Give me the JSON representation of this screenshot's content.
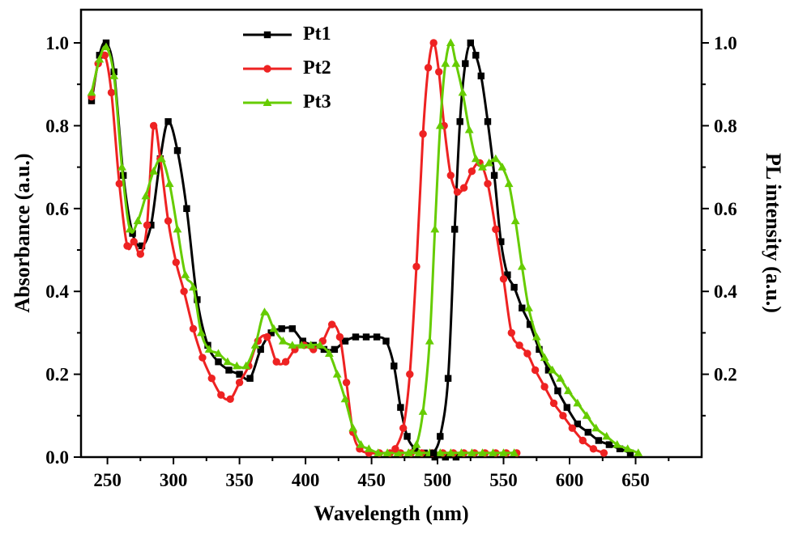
{
  "figure": {
    "background": "#ffffff",
    "border_color": "#000000"
  },
  "chart_data": {
    "type": "line",
    "title": "",
    "xlabel": "Wavelength (nm)",
    "ylabel_left": "Absorbance (a.u.)",
    "ylabel_right": "PL intensity (a.u.)",
    "xlim": [
      230,
      700
    ],
    "ylim": [
      0,
      1.08
    ],
    "x_ticks": [
      250,
      300,
      350,
      400,
      450,
      500,
      550,
      600,
      650
    ],
    "x_minor_step": 25,
    "y_ticks_left": [
      0.0,
      0.2,
      0.4,
      0.6,
      0.8,
      1.0
    ],
    "y_ticks_right": [
      0.2,
      0.4,
      0.6,
      0.8,
      1.0
    ],
    "y_minor_step": 0.1,
    "grid": false,
    "legend": {
      "position": "top-center",
      "entries": [
        {
          "label": "Pt1",
          "color": "#000000",
          "marker": "square"
        },
        {
          "label": "Pt2",
          "color": "#ee2222",
          "marker": "circle"
        },
        {
          "label": "Pt3",
          "color": "#66cc00",
          "marker": "triangle"
        }
      ]
    },
    "series": [
      {
        "name": "Pt1 absorption",
        "label": "Pt1",
        "axis": "left",
        "color": "#000000",
        "marker": "square",
        "x": [
          238,
          244,
          249,
          255,
          262,
          269,
          276,
          283,
          290,
          296,
          303,
          310,
          318,
          326,
          334,
          342,
          350,
          358,
          366,
          374,
          382,
          390,
          398,
          406,
          414,
          422,
          430,
          438,
          446,
          454,
          461,
          467,
          472,
          477,
          483,
          490,
          498,
          506,
          514
        ],
        "y": [
          0.86,
          0.97,
          1.0,
          0.93,
          0.68,
          0.54,
          0.51,
          0.56,
          0.72,
          0.81,
          0.74,
          0.6,
          0.38,
          0.27,
          0.23,
          0.21,
          0.2,
          0.19,
          0.26,
          0.3,
          0.31,
          0.31,
          0.28,
          0.27,
          0.26,
          0.26,
          0.28,
          0.29,
          0.29,
          0.29,
          0.28,
          0.22,
          0.12,
          0.05,
          0.02,
          0.01,
          0.0,
          0.0,
          0.0
        ]
      },
      {
        "name": "Pt2 absorption",
        "label": "Pt2",
        "axis": "left",
        "color": "#ee2222",
        "marker": "circle",
        "x": [
          238,
          243,
          248,
          253,
          259,
          265,
          270,
          275,
          280,
          285,
          290,
          296,
          302,
          308,
          315,
          322,
          329,
          336,
          343,
          350,
          357,
          364,
          371,
          378,
          385,
          392,
          399,
          406,
          413,
          420,
          426,
          431,
          436,
          441,
          448,
          456,
          464,
          472,
          480,
          488,
          496,
          504,
          512,
          520,
          528,
          536,
          544,
          552,
          560
        ],
        "y": [
          0.87,
          0.95,
          0.97,
          0.88,
          0.66,
          0.51,
          0.52,
          0.49,
          0.56,
          0.8,
          0.72,
          0.57,
          0.47,
          0.4,
          0.31,
          0.24,
          0.19,
          0.15,
          0.14,
          0.18,
          0.22,
          0.28,
          0.29,
          0.23,
          0.23,
          0.26,
          0.27,
          0.26,
          0.28,
          0.32,
          0.29,
          0.18,
          0.06,
          0.02,
          0.01,
          0.01,
          0.01,
          0.01,
          0.01,
          0.01,
          0.01,
          0.01,
          0.01,
          0.01,
          0.01,
          0.01,
          0.01,
          0.01,
          0.01
        ]
      },
      {
        "name": "Pt3 absorption",
        "label": "Pt3",
        "axis": "left",
        "color": "#66cc00",
        "marker": "triangle",
        "x": [
          238,
          244,
          249,
          255,
          261,
          267,
          273,
          279,
          285,
          291,
          297,
          303,
          309,
          315,
          321,
          327,
          334,
          341,
          348,
          355,
          362,
          369,
          376,
          383,
          390,
          397,
          404,
          411,
          418,
          424,
          430,
          436,
          442,
          448,
          455,
          462,
          470,
          478,
          486,
          494,
          502,
          510,
          518,
          526,
          534,
          542,
          550,
          558
        ],
        "y": [
          0.88,
          0.96,
          0.99,
          0.92,
          0.7,
          0.55,
          0.57,
          0.63,
          0.69,
          0.72,
          0.66,
          0.55,
          0.44,
          0.41,
          0.3,
          0.26,
          0.25,
          0.23,
          0.22,
          0.22,
          0.27,
          0.35,
          0.31,
          0.28,
          0.27,
          0.27,
          0.27,
          0.27,
          0.25,
          0.2,
          0.14,
          0.07,
          0.03,
          0.02,
          0.01,
          0.01,
          0.01,
          0.01,
          0.01,
          0.01,
          0.01,
          0.01,
          0.01,
          0.01,
          0.01,
          0.01,
          0.01,
          0.01
        ]
      },
      {
        "name": "Pt1 PL",
        "label": "Pt1",
        "axis": "right",
        "color": "#000000",
        "marker": "square",
        "x": [
          497,
          502,
          508,
          513,
          517,
          521,
          525,
          529,
          533,
          538,
          543,
          548,
          553,
          558,
          564,
          570,
          577,
          584,
          591,
          598,
          606,
          614,
          622,
          630,
          638,
          646
        ],
        "y": [
          0.01,
          0.05,
          0.19,
          0.55,
          0.81,
          0.95,
          1.0,
          0.97,
          0.92,
          0.81,
          0.68,
          0.52,
          0.44,
          0.41,
          0.36,
          0.32,
          0.26,
          0.21,
          0.16,
          0.12,
          0.08,
          0.06,
          0.04,
          0.03,
          0.02,
          0.01
        ]
      },
      {
        "name": "Pt2 PL",
        "label": "Pt2",
        "axis": "right",
        "color": "#ee2222",
        "marker": "circle",
        "x": [
          468,
          474,
          479,
          484,
          489,
          493,
          497,
          501,
          505,
          510,
          515,
          520,
          526,
          532,
          538,
          544,
          550,
          556,
          562,
          568,
          574,
          581,
          588,
          595,
          602,
          610,
          618,
          626
        ],
        "y": [
          0.02,
          0.07,
          0.2,
          0.46,
          0.78,
          0.94,
          1.0,
          0.93,
          0.8,
          0.68,
          0.64,
          0.65,
          0.69,
          0.71,
          0.66,
          0.55,
          0.43,
          0.3,
          0.27,
          0.25,
          0.21,
          0.17,
          0.13,
          0.1,
          0.07,
          0.04,
          0.02,
          0.01
        ]
      },
      {
        "name": "Pt3 PL",
        "label": "Pt3",
        "axis": "right",
        "color": "#66cc00",
        "marker": "triangle",
        "x": [
          478,
          484,
          489,
          494,
          498,
          502,
          506,
          510,
          514,
          519,
          524,
          529,
          534,
          539,
          544,
          549,
          554,
          559,
          564,
          569,
          575,
          581,
          587,
          593,
          599,
          606,
          613,
          620,
          628,
          636,
          644,
          652
        ],
        "y": [
          0.01,
          0.03,
          0.11,
          0.28,
          0.55,
          0.8,
          0.95,
          1.0,
          0.95,
          0.88,
          0.79,
          0.72,
          0.7,
          0.71,
          0.72,
          0.7,
          0.66,
          0.57,
          0.46,
          0.36,
          0.29,
          0.24,
          0.21,
          0.19,
          0.16,
          0.13,
          0.1,
          0.07,
          0.05,
          0.03,
          0.02,
          0.01
        ]
      }
    ]
  }
}
